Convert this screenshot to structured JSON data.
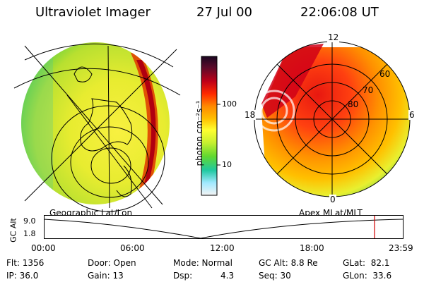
{
  "header": {
    "instrument": "Ultraviolet Imager",
    "date": "27 Jul 00",
    "time": "22:06:08 UT"
  },
  "left_panel": {
    "caption": "Geographic Lat/Lon"
  },
  "right_panel": {
    "caption": "Apex MLat/MLT",
    "mlt_labels": {
      "top": "12",
      "left": "18",
      "right": "6",
      "bottom": "0"
    },
    "mlat_labels": [
      "60",
      "70",
      "80"
    ]
  },
  "colorbar": {
    "unit_label": "photon cm⁻²s⁻¹",
    "ticks": [
      "100",
      "10"
    ],
    "colors": [
      "#1a0620",
      "#5a0a2a",
      "#c00018",
      "#ff2a00",
      "#ff8a00",
      "#ffc000",
      "#ffff30",
      "#c8f030",
      "#60d830",
      "#20c8a0",
      "#a0e8ff",
      "#f4f4f4"
    ]
  },
  "altitude_plot": {
    "axis_label": "GC Alt",
    "y_ticks": [
      "9.0",
      "1.8"
    ],
    "x_ticks": [
      "00:00",
      "06:00",
      "12:00",
      "18:00",
      "23:59"
    ],
    "marker_color": "#d00000"
  },
  "status": {
    "flt": "Flt: 1356",
    "ip": "IP: 36.0",
    "door": "Door: Open",
    "gain": "Gain: 13",
    "mode": "Mode: Normal",
    "dsp_label": "Dsp:",
    "dsp_value": "4.3",
    "gc_alt": "GC Alt: 8.8 Re",
    "seq": "Seq: 30",
    "glat": "GLat:  82.1",
    "glon": "GLon:  33.6"
  }
}
